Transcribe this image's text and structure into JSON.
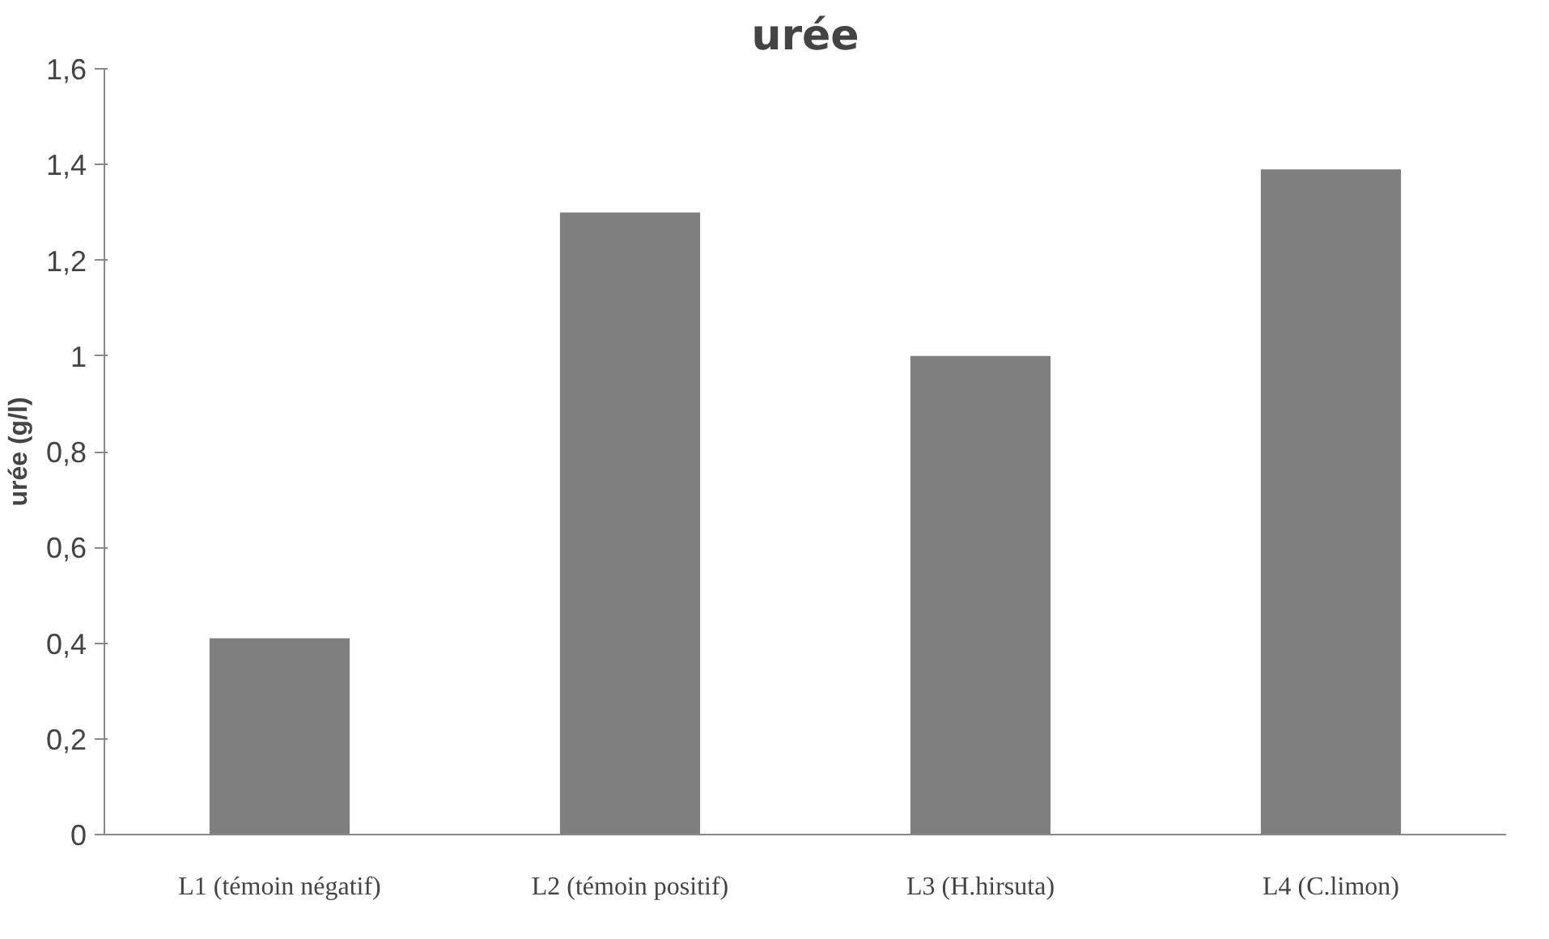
{
  "chart_data": {
    "type": "bar",
    "title": "urée",
    "ylabel": "urée (g/l)",
    "categories": [
      "L1 (témoin négatif)",
      "L2 (témoin positif)",
      "L3 (H.hirsuta)",
      "L4 (C.limon)"
    ],
    "values": [
      0.41,
      1.3,
      1.0,
      1.39
    ],
    "color": "#7f7f7f",
    "ylim": [
      0,
      1.6
    ],
    "yticks": [
      0,
      {
        "value": 0.2,
        "label": "0,2"
      },
      {
        "value": 0.4,
        "label": "0,4"
      },
      {
        "value": 0.6,
        "label": "0,6"
      },
      {
        "value": 0.8,
        "label": "0,8"
      },
      1,
      {
        "value": 1.2,
        "label": "1,2"
      },
      {
        "value": 1.4,
        "label": "1,4"
      },
      {
        "value": 1.6,
        "label": "1,6"
      }
    ],
    "grid": false
  }
}
